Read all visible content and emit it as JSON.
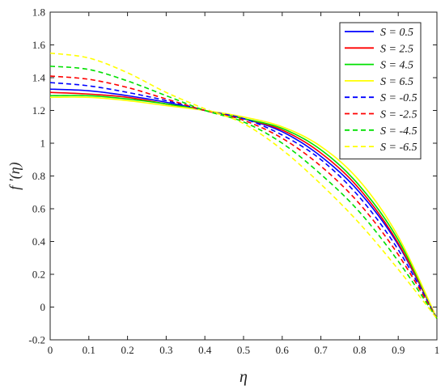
{
  "chart_data": {
    "type": "line",
    "xlabel": "η",
    "ylabel": "f ′(η)",
    "xlim": [
      0,
      1
    ],
    "ylim": [
      -0.2,
      1.8
    ],
    "xticks": [
      "0",
      "0.1",
      "0.2",
      "0.3",
      "0.4",
      "0.5",
      "0.6",
      "0.7",
      "0.8",
      "0.9",
      "1"
    ],
    "yticks": [
      "-0.2",
      "0",
      "0.2",
      "0.4",
      "0.6",
      "0.8",
      "1",
      "1.2",
      "1.4",
      "1.6",
      "1.8"
    ],
    "legend_position": "top-right",
    "grid": false,
    "x": [
      0,
      0.1,
      0.2,
      0.3,
      0.4,
      0.5,
      0.6,
      0.7,
      0.8,
      0.9,
      1.0
    ],
    "series": [
      {
        "name": "S = 0.5",
        "color": "#0000ff",
        "dash": false,
        "values": [
          1.33,
          1.32,
          1.29,
          1.25,
          1.2,
          1.15,
          1.07,
          0.92,
          0.7,
          0.38,
          -0.07
        ]
      },
      {
        "name": "S = 2.5",
        "color": "#ff0000",
        "dash": false,
        "values": [
          1.31,
          1.3,
          1.28,
          1.24,
          1.2,
          1.15,
          1.08,
          0.94,
          0.72,
          0.39,
          -0.07
        ]
      },
      {
        "name": "S = 4.5",
        "color": "#00e000",
        "dash": false,
        "values": [
          1.29,
          1.29,
          1.27,
          1.24,
          1.2,
          1.15,
          1.09,
          0.96,
          0.74,
          0.41,
          -0.07
        ]
      },
      {
        "name": "S = 6.5",
        "color": "#ffff00",
        "dash": false,
        "values": [
          1.28,
          1.28,
          1.26,
          1.23,
          1.2,
          1.16,
          1.1,
          0.98,
          0.77,
          0.43,
          -0.07
        ]
      },
      {
        "name": "S = -0.5",
        "color": "#0000ff",
        "dash": true,
        "values": [
          1.37,
          1.35,
          1.31,
          1.26,
          1.2,
          1.15,
          1.05,
          0.9,
          0.67,
          0.35,
          -0.07
        ]
      },
      {
        "name": "S = -2.5",
        "color": "#ff0000",
        "dash": true,
        "values": [
          1.41,
          1.39,
          1.34,
          1.27,
          1.2,
          1.14,
          1.03,
          0.86,
          0.63,
          0.32,
          -0.07
        ]
      },
      {
        "name": "S = -4.5",
        "color": "#00e000",
        "dash": true,
        "values": [
          1.47,
          1.45,
          1.38,
          1.29,
          1.2,
          1.13,
          1.0,
          0.81,
          0.58,
          0.28,
          -0.07
        ]
      },
      {
        "name": "S = -6.5",
        "color": "#ffff00",
        "dash": true,
        "values": [
          1.55,
          1.52,
          1.43,
          1.31,
          1.21,
          1.12,
          0.96,
          0.75,
          0.51,
          0.23,
          -0.07
        ]
      }
    ]
  }
}
